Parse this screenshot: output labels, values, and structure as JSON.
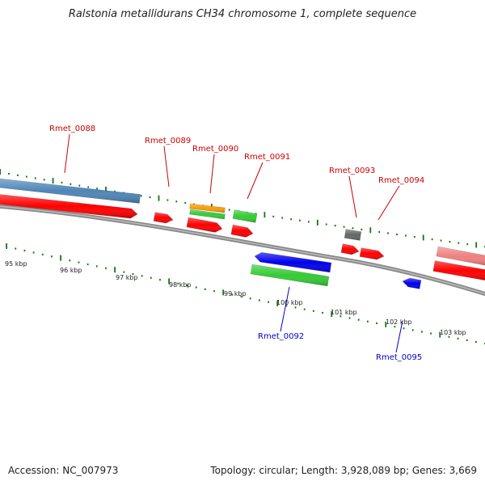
{
  "title": "Ralstonia metallidurans CH34 chromosome 1, complete sequence",
  "footer": {
    "accession": "Accession: NC_007973",
    "summary": "Topology: circular; Length: 3,928,089 bp; Genes: 3,669"
  },
  "scale": {
    "unit": "kbp",
    "labels": [
      "95 kbp",
      "96 kbp",
      "97 kbp",
      "98 kbp",
      "99 kbp",
      "100 kbp",
      "101 kbp",
      "102 kbp",
      "103 kbp"
    ]
  },
  "gene_labels": [
    {
      "name": "Rmet_0088",
      "strand": "forward"
    },
    {
      "name": "Rmet_0089",
      "strand": "forward"
    },
    {
      "name": "Rmet_0090",
      "strand": "forward"
    },
    {
      "name": "Rmet_0091",
      "strand": "forward"
    },
    {
      "name": "Rmet_0093",
      "strand": "forward"
    },
    {
      "name": "Rmet_0094",
      "strand": "forward"
    },
    {
      "name": "Rmet_0092",
      "strand": "reverse"
    },
    {
      "name": "Rmet_0095",
      "strand": "reverse"
    }
  ],
  "colors": {
    "forward_label": "#cc0000",
    "reverse_label": "#0000cc",
    "cds": "#ff0000",
    "cds_light": "#f08080",
    "steelblue": "#4f86b8",
    "orange": "#ff9900",
    "green": "#33cc33",
    "blue": "#0000ee",
    "gray": "#666666",
    "backbone": "#888888",
    "ticks": "#117711"
  }
}
